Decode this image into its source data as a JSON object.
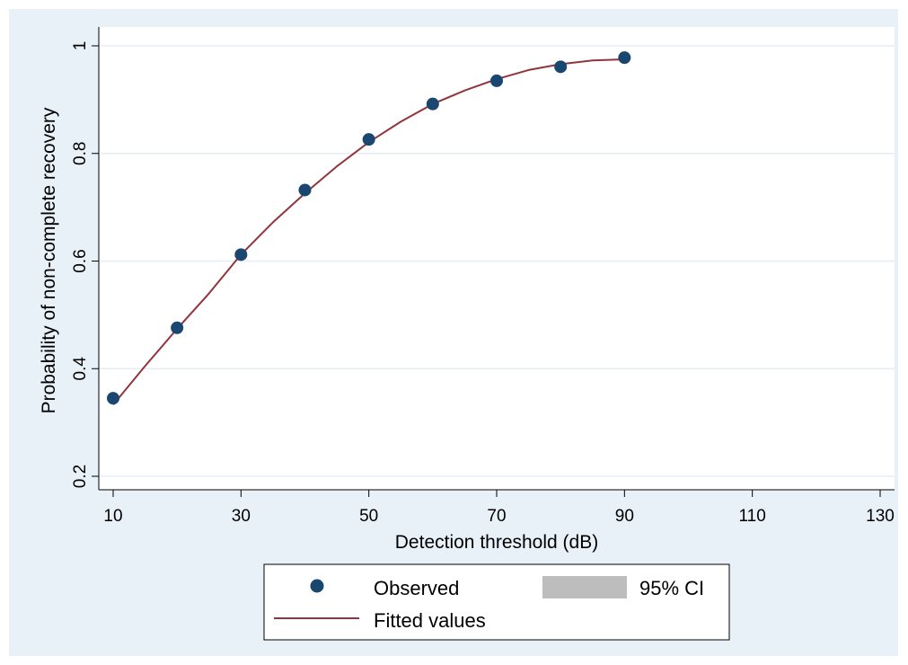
{
  "chart_data": {
    "type": "scatter",
    "xlabel": "Detection threshold (dB)",
    "ylabel": "Probability of non-complete recovery",
    "xlim": [
      10,
      130
    ],
    "ylim": [
      0.2,
      1.0
    ],
    "xticks": [
      10,
      30,
      50,
      70,
      90,
      110,
      130
    ],
    "yticks": [
      0.2,
      0.4,
      0.6,
      0.8,
      1.0
    ],
    "ytick_labels": [
      "0.2",
      "0.4",
      "0.6",
      "0.8",
      "1"
    ],
    "grid": true,
    "legend_position": "bottom",
    "colors": {
      "background": "#e8f1f8",
      "plot_area": "#ffffff",
      "observed": "#1a476f",
      "fitted": "#90353b",
      "ci": "#bdbdbd",
      "grid": "#e6eef5"
    },
    "series": [
      {
        "name": "Observed",
        "kind": "scatter",
        "x": [
          10,
          20,
          30,
          40,
          50,
          60,
          70,
          80,
          90
        ],
        "y": [
          0.345,
          0.476,
          0.612,
          0.732,
          0.826,
          0.892,
          0.935,
          0.961,
          0.978
        ]
      },
      {
        "name": "Fitted values",
        "kind": "line",
        "x": [
          10,
          15,
          20,
          25,
          30,
          35,
          40,
          45,
          50,
          55,
          60,
          65,
          70,
          75,
          80,
          85,
          90
        ],
        "y": [
          0.333,
          0.405,
          0.474,
          0.54,
          0.612,
          0.672,
          0.726,
          0.776,
          0.821,
          0.859,
          0.892,
          0.917,
          0.938,
          0.955,
          0.966,
          0.973,
          0.975
        ]
      },
      {
        "name": "95% CI",
        "kind": "band"
      }
    ],
    "legend": {
      "observed": "Observed",
      "ci": "95% CI",
      "fitted": "Fitted values"
    }
  }
}
